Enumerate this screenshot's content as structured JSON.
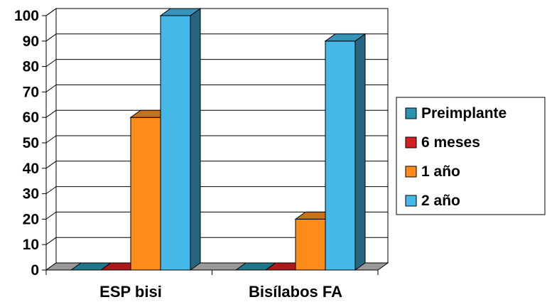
{
  "chart_data": {
    "type": "bar",
    "title": "",
    "xlabel": "",
    "ylabel": "",
    "ylim": [
      0,
      100
    ],
    "yticks": [
      0,
      10,
      20,
      30,
      40,
      50,
      60,
      70,
      80,
      90,
      100
    ],
    "categories": [
      "ESP bisi",
      "Bisílabos FA"
    ],
    "series": [
      {
        "name": "Preimplante",
        "values": [
          0,
          0
        ],
        "color": "#2b93ad"
      },
      {
        "name": "6 meses",
        "values": [
          0,
          0
        ],
        "color": "#d42020"
      },
      {
        "name": "1 año",
        "values": [
          60,
          20
        ],
        "color": "#ff8c1a"
      },
      {
        "name": "2 año",
        "values": [
          100,
          90
        ],
        "color": "#45b8e8"
      }
    ],
    "grid": true,
    "legend": "right",
    "style": "3d-clustered"
  }
}
